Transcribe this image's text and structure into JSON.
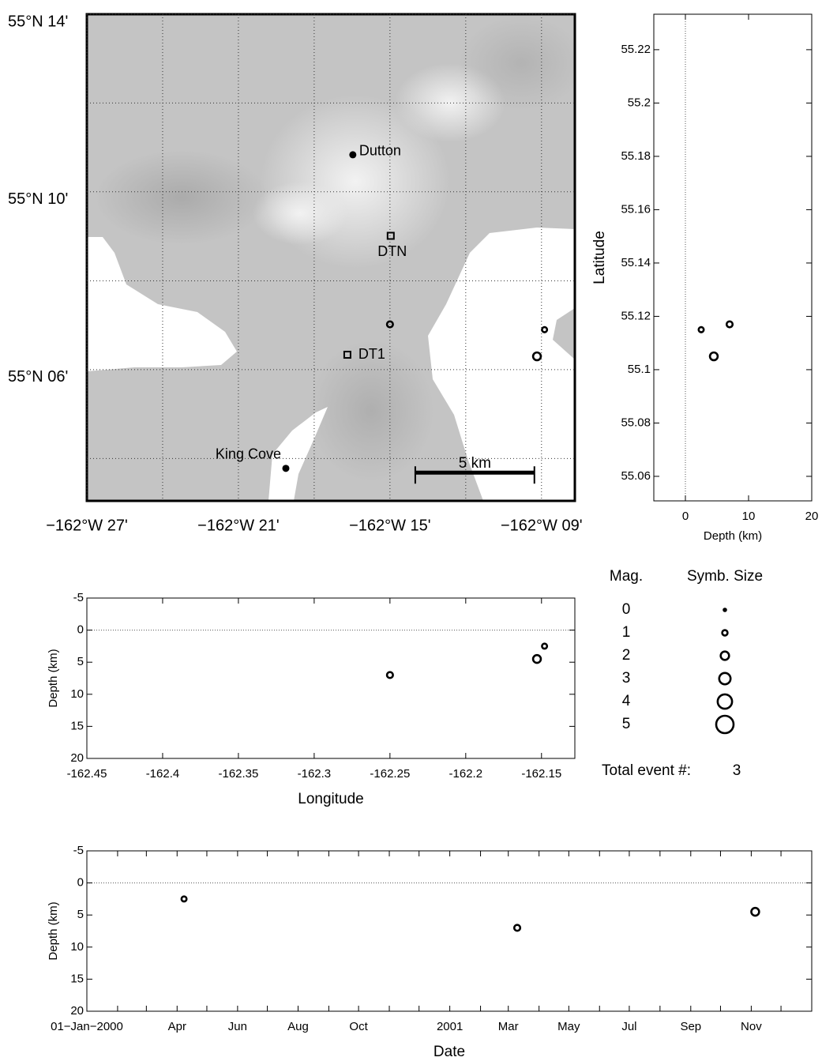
{
  "chart_data": [
    {
      "type": "map",
      "xlim": [
        -162.45,
        -162.128
      ],
      "ylim": [
        55.0508,
        55.2333
      ],
      "xticks": [
        {
          "value": -162.45,
          "label": "−162°W 27'"
        },
        {
          "value": -162.4,
          "label": null
        },
        {
          "value": -162.35,
          "label": "−162°W 21'"
        },
        {
          "value": -162.3,
          "label": null
        },
        {
          "value": -162.25,
          "label": "−162°W 15'"
        },
        {
          "value": -162.2,
          "label": null
        },
        {
          "value": -162.15,
          "label": "−162°W 09'"
        }
      ],
      "yticks": [
        {
          "value": 55.2333,
          "label": "55°N 14'"
        },
        {
          "value": 55.2,
          "label": null
        },
        {
          "value": 55.1667,
          "label": "55°N 10'"
        },
        {
          "value": 55.1333,
          "label": null
        },
        {
          "value": 55.1,
          "label": "55°N 06'"
        },
        {
          "value": 55.0667,
          "label": null
        }
      ],
      "grid": true,
      "places": [
        {
          "name": "Dutton",
          "lon": -162.2745,
          "lat": 55.1806
        },
        {
          "name": "King Cove",
          "lon": -162.3187,
          "lat": 55.063
        }
      ],
      "stations": [
        {
          "name": "DTN",
          "lon": -162.2495,
          "lat": 55.1502
        },
        {
          "name": "DT1",
          "lon": -162.2781,
          "lat": 55.1056
        }
      ],
      "scale_bar": {
        "label": "5 km",
        "x": [
          -162.2333,
          -162.1547
        ],
        "y": 55.0614
      },
      "series": [
        {
          "color": "#000000",
          "x": [
            -162.25,
            -162.148,
            -162.153
          ],
          "values": [
            55.117,
            55.115,
            55.105
          ],
          "sizes": [
            1.2,
            0.9,
            1.8
          ]
        }
      ]
    },
    {
      "type": "scatter",
      "xlabel": "Depth (km)",
      "ylabel": "Latitude",
      "xlim": [
        -5,
        20
      ],
      "ylim": [
        55.0508,
        55.2333
      ],
      "xticks": [
        0,
        10,
        20
      ],
      "yticks": [
        55.06,
        55.08,
        55.1,
        55.12,
        55.14,
        55.16,
        55.18,
        55.2,
        55.22
      ],
      "reference_line": {
        "axis": "x",
        "value": 0
      },
      "series": [
        {
          "color": "#000000",
          "x": [
            7,
            2.5,
            4.5
          ],
          "values": [
            55.117,
            55.115,
            55.105
          ],
          "sizes": [
            1.2,
            0.9,
            1.8
          ]
        }
      ]
    },
    {
      "type": "scatter",
      "xlabel": "Longitude",
      "ylabel": "Depth (km)",
      "xlim": [
        -162.45,
        -162.128
      ],
      "ylim": [
        -5,
        20
      ],
      "y_reversed": true,
      "xticks": [
        -162.45,
        -162.4,
        -162.35,
        -162.3,
        -162.25,
        -162.2,
        -162.15
      ],
      "yticks": [
        -5,
        0,
        5,
        10,
        15,
        20
      ],
      "reference_line": {
        "axis": "y",
        "value": 0
      },
      "series": [
        {
          "color": "#000000",
          "x": [
            -162.25,
            -162.148,
            -162.153
          ],
          "values": [
            7,
            2.5,
            4.5
          ],
          "sizes": [
            1.2,
            0.9,
            1.8
          ]
        }
      ]
    },
    {
      "type": "scatter",
      "xlabel": "Date",
      "ylabel": "Depth (km)",
      "xlim": [
        "2000-01-01",
        "2002-01-01"
      ],
      "ylim": [
        -5,
        20
      ],
      "y_reversed": true,
      "xticks": [
        {
          "value": "2000-01-01",
          "label": "01−Jan−2000"
        },
        {
          "value": "2000-02-01",
          "label": null
        },
        {
          "value": "2000-03-01",
          "label": null
        },
        {
          "value": "2000-04-01",
          "label": "Apr"
        },
        {
          "value": "2000-05-01",
          "label": null
        },
        {
          "value": "2000-06-01",
          "label": "Jun"
        },
        {
          "value": "2000-07-01",
          "label": null
        },
        {
          "value": "2000-08-01",
          "label": "Aug"
        },
        {
          "value": "2000-09-01",
          "label": null
        },
        {
          "value": "2000-10-01",
          "label": "Oct"
        },
        {
          "value": "2000-11-01",
          "label": null
        },
        {
          "value": "2000-12-01",
          "label": null
        },
        {
          "value": "2001-01-01",
          "label": "2001"
        },
        {
          "value": "2001-02-01",
          "label": null
        },
        {
          "value": "2001-03-01",
          "label": "Mar"
        },
        {
          "value": "2001-04-01",
          "label": null
        },
        {
          "value": "2001-05-01",
          "label": "May"
        },
        {
          "value": "2001-06-01",
          "label": null
        },
        {
          "value": "2001-07-01",
          "label": "Jul"
        },
        {
          "value": "2001-08-01",
          "label": null
        },
        {
          "value": "2001-09-01",
          "label": "Sep"
        },
        {
          "value": "2001-10-01",
          "label": null
        },
        {
          "value": "2001-11-01",
          "label": "Nov"
        },
        {
          "value": "2001-12-01",
          "label": null
        }
      ],
      "yticks": [
        -5,
        0,
        5,
        10,
        15,
        20
      ],
      "reference_line": {
        "axis": "y",
        "value": 0
      },
      "series": [
        {
          "color": "#000000",
          "x": [
            "2000-04-08",
            "2001-03-10",
            "2001-11-05"
          ],
          "values": [
            2.5,
            7,
            4.5
          ],
          "sizes": [
            0.9,
            1.2,
            1.8
          ]
        }
      ]
    }
  ],
  "size_legend": {
    "mag_title": "Mag.",
    "size_title": "Symb. Size",
    "magnitudes": [
      0,
      1,
      2,
      3,
      4,
      5
    ]
  },
  "event_count": {
    "label": "Total event #:",
    "value": 3
  }
}
